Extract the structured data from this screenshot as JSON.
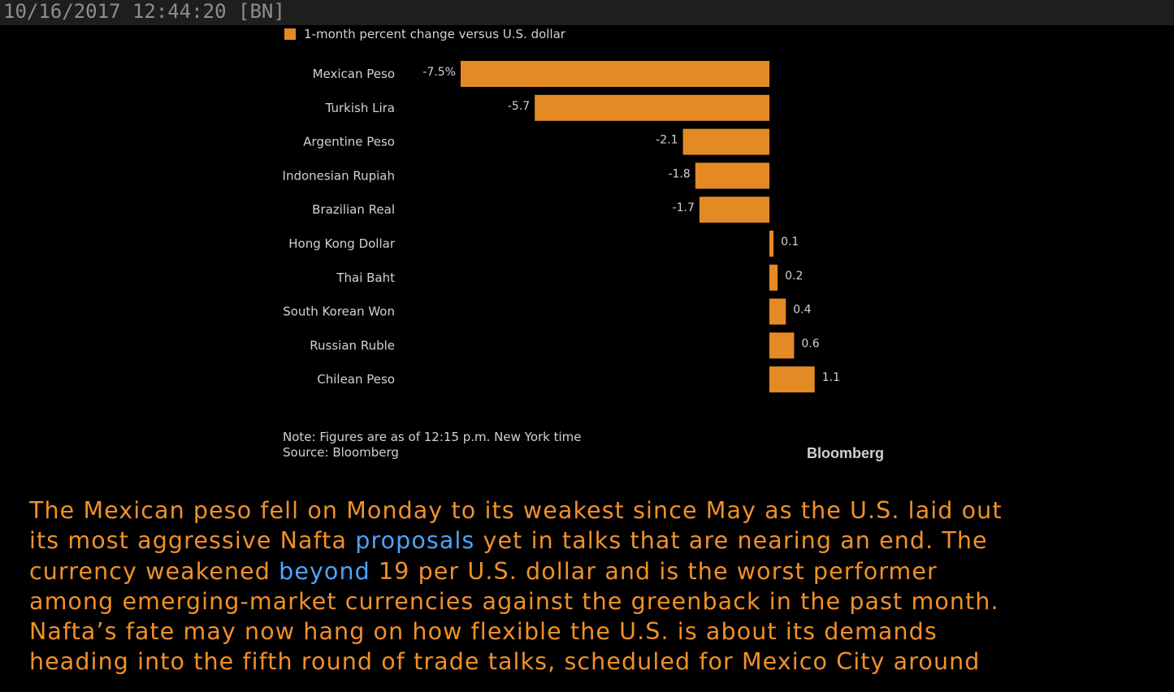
{
  "header": {
    "timestamp": "10/16/2017 12:44:20",
    "source_tag": "[BN]"
  },
  "chart_data": {
    "type": "bar",
    "orientation": "horizontal",
    "legend": "1-month percent change versus U.S. dollar",
    "categories": [
      "Mexican Peso",
      "Turkish Lira",
      "Argentine Peso",
      "Indonesian Rupiah",
      "Brazilian Real",
      "Hong Kong Dollar",
      "Thai Baht",
      "South Korean Won",
      "Russian Ruble",
      "Chilean Peso"
    ],
    "values": [
      -7.5,
      -5.7,
      -2.1,
      -1.8,
      -1.7,
      0.1,
      0.2,
      0.4,
      0.6,
      1.1
    ],
    "value_labels": [
      "-7.5%",
      "-5.7",
      "-2.1",
      "-1.8",
      "-1.7",
      "0.1",
      "0.2",
      "0.4",
      "0.6",
      "1.1"
    ],
    "bar_color": "#e38a25",
    "note": "Note: Figures are as of 12:15 p.m. New York time",
    "source": "Source: Bloomberg",
    "brand": "Bloomberg"
  },
  "article": {
    "lines": [
      {
        "segments": [
          {
            "text": "The Mexican peso fell on Monday to its weakest since May as the U.S. laid out",
            "link": false
          }
        ]
      },
      {
        "segments": [
          {
            "text": "its most aggressive Nafta ",
            "link": false
          },
          {
            "text": "proposals",
            "link": true
          },
          {
            "text": " yet in talks that are nearing an end. The",
            "link": false
          }
        ]
      },
      {
        "segments": [
          {
            "text": "currency weakened ",
            "link": false
          },
          {
            "text": "beyond",
            "link": true
          },
          {
            "text": " 19 per U.S. dollar and is the worst performer",
            "link": false
          }
        ]
      },
      {
        "segments": [
          {
            "text": "among emerging-market currencies against the greenback in the past month.",
            "link": false
          }
        ]
      },
      {
        "segments": [
          {
            "text": "Nafta’s fate may now hang on how flexible the U.S. is about its demands",
            "link": false
          }
        ]
      },
      {
        "segments": [
          {
            "text": "heading into the fifth round of trade talks, scheduled for Mexico City around",
            "link": false
          }
        ]
      }
    ],
    "text_color": "#f0902a",
    "link_color": "#4da3ff"
  }
}
